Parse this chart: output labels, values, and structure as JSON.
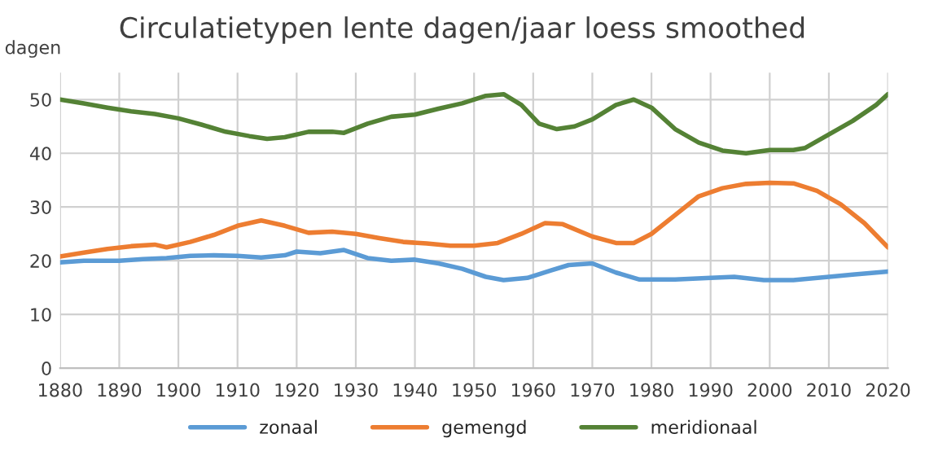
{
  "chart_data": {
    "type": "line",
    "title": "Circulatietypen lente dagen/jaar loess smoothed",
    "ylabel": "dagen",
    "xlim": [
      1880,
      2020
    ],
    "xticks": [
      1880,
      1890,
      1900,
      1910,
      1920,
      1930,
      1940,
      1950,
      1960,
      1970,
      1980,
      1990,
      2000,
      2010,
      2020
    ],
    "ylim": [
      0,
      55
    ],
    "yticks": [
      0,
      10,
      20,
      30,
      40,
      50
    ],
    "grid": true,
    "legend": "bottom",
    "marker": "none",
    "line_style": "solid",
    "series": [
      {
        "name": "zonaal",
        "color": "#5b9bd5",
        "x": [
          1880,
          1884,
          1890,
          1894,
          1898,
          1902,
          1906,
          1910,
          1914,
          1918,
          1920,
          1924,
          1928,
          1932,
          1936,
          1940,
          1944,
          1948,
          1952,
          1955,
          1959,
          1963,
          1966,
          1970,
          1974,
          1978,
          1984,
          1990,
          1994,
          1999,
          2004,
          2010,
          2014,
          2020
        ],
        "values": [
          19.7,
          20,
          20,
          20.3,
          20.5,
          20.9,
          21,
          20.9,
          20.6,
          21,
          21.7,
          21.4,
          22,
          20.5,
          20,
          20.2,
          19.5,
          18.5,
          17,
          16.4,
          16.8,
          18.2,
          19.2,
          19.5,
          17.8,
          16.5,
          16.5,
          16.8,
          17,
          16.4,
          16.4,
          17,
          17.4,
          18
        ]
      },
      {
        "name": "gemengd",
        "color": "#ed7d31",
        "x": [
          1880,
          1884,
          1888,
          1892,
          1896,
          1898,
          1902,
          1906,
          1910,
          1914,
          1918,
          1922,
          1926,
          1930,
          1934,
          1938,
          1942,
          1946,
          1950,
          1954,
          1958,
          1962,
          1965,
          1970,
          1974,
          1977,
          1980,
          1984,
          1988,
          1992,
          1996,
          2000,
          2004,
          2008,
          2012,
          2016,
          2020
        ],
        "values": [
          20.8,
          21.5,
          22.2,
          22.7,
          23,
          22.5,
          23.5,
          24.8,
          26.5,
          27.5,
          26.5,
          25.2,
          25.4,
          25,
          24.2,
          23.5,
          23.2,
          22.8,
          22.8,
          23.3,
          25,
          27,
          26.8,
          24.5,
          23.3,
          23.3,
          25,
          28.5,
          32,
          33.5,
          34.3,
          34.5,
          34.4,
          33,
          30.5,
          27,
          22.5
        ]
      },
      {
        "name": "meridionaal",
        "color": "#548235",
        "x": [
          1880,
          1884,
          1888,
          1892,
          1896,
          1900,
          1904,
          1908,
          1912,
          1915,
          1918,
          1922,
          1926,
          1928,
          1932,
          1936,
          1940,
          1944,
          1948,
          1952,
          1955,
          1958,
          1961,
          1964,
          1967,
          1970,
          1974,
          1977,
          1980,
          1984,
          1988,
          1992,
          1996,
          2000,
          2004,
          2006,
          2010,
          2014,
          2018,
          2020
        ],
        "values": [
          50,
          49.3,
          48.5,
          47.8,
          47.3,
          46.5,
          45.3,
          44,
          43.2,
          42.7,
          43,
          44,
          44,
          43.8,
          45.5,
          46.8,
          47.2,
          48.3,
          49.3,
          50.7,
          51,
          49,
          45.5,
          44.5,
          45,
          46.3,
          49,
          50,
          48.5,
          44.5,
          42,
          40.5,
          40,
          40.6,
          40.6,
          41,
          43.5,
          46,
          49,
          51
        ]
      }
    ]
  }
}
